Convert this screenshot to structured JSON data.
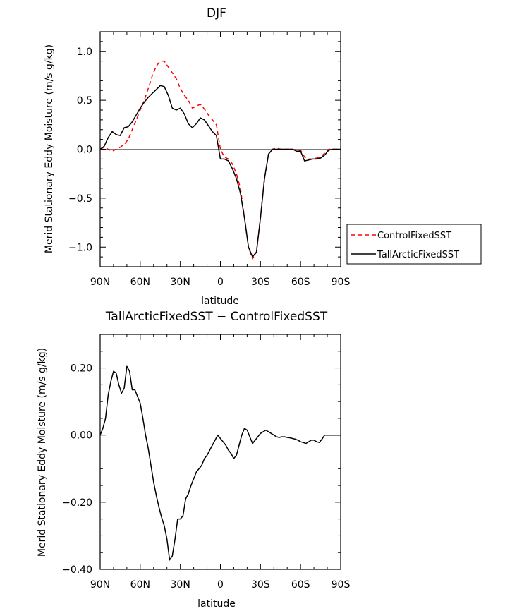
{
  "chart_data": [
    {
      "type": "line",
      "title": "DJF",
      "xlabel": "latitude",
      "ylabel": "Merid Stationary Eddy Moisture (m/s g/kg)",
      "xlim": [
        90,
        -90
      ],
      "ylim": [
        -1.2,
        1.2
      ],
      "x_ticks": [
        90,
        60,
        30,
        0,
        -30,
        -60,
        -90
      ],
      "x_tick_labels": [
        "90N",
        "60N",
        "30N",
        "0",
        "30S",
        "60S",
        "90S"
      ],
      "y_ticks": [
        1.0,
        0.5,
        0.0,
        -0.5,
        -1.0
      ],
      "y_tick_labels": [
        "1.0",
        "0.5",
        "0.0",
        "−0.5",
        "−1.0"
      ],
      "legend": "right",
      "series": [
        {
          "name": "ControlFixedSST",
          "color": "#ff0000",
          "dash": "dashed",
          "x": [
            90,
            87,
            84,
            81,
            78,
            75,
            72,
            69,
            66,
            63,
            60,
            57,
            54,
            51,
            48,
            45,
            42,
            39,
            36,
            33,
            30,
            27,
            24,
            21,
            18,
            15,
            12,
            9,
            6,
            3,
            0,
            -3,
            -6,
            -9,
            -12,
            -15,
            -18,
            -21,
            -24,
            -27,
            -30,
            -33,
            -36,
            -39,
            -42,
            -45,
            -48,
            -51,
            -54,
            -57,
            -60,
            -63,
            -66,
            -69,
            -72,
            -75,
            -78,
            -81,
            -84,
            -87,
            -90
          ],
          "y": [
            0.0,
            0.02,
            0.0,
            -0.02,
            0.0,
            0.02,
            0.05,
            0.1,
            0.2,
            0.3,
            0.4,
            0.5,
            0.62,
            0.75,
            0.85,
            0.9,
            0.9,
            0.84,
            0.78,
            0.72,
            0.62,
            0.55,
            0.5,
            0.42,
            0.44,
            0.46,
            0.41,
            0.35,
            0.3,
            0.25,
            0.0,
            -0.08,
            -0.1,
            -0.15,
            -0.25,
            -0.4,
            -0.7,
            -1.0,
            -1.12,
            -1.05,
            -0.7,
            -0.3,
            -0.05,
            0.0,
            0.01,
            0.0,
            0.0,
            0.0,
            0.0,
            -0.01,
            -0.01,
            -0.08,
            -0.1,
            -0.1,
            -0.09,
            -0.08,
            -0.04,
            0.0,
            0.0,
            0.0,
            0.0
          ]
        },
        {
          "name": "TallArcticFixedSST",
          "color": "#000000",
          "dash": "solid",
          "x": [
            90,
            87,
            84,
            81,
            78,
            75,
            72,
            69,
            66,
            63,
            60,
            57,
            54,
            51,
            48,
            45,
            42,
            39,
            36,
            33,
            30,
            27,
            24,
            21,
            18,
            15,
            12,
            9,
            6,
            3,
            0,
            -3,
            -6,
            -9,
            -12,
            -15,
            -18,
            -21,
            -24,
            -27,
            -30,
            -33,
            -36,
            -39,
            -42,
            -45,
            -48,
            -51,
            -54,
            -57,
            -60,
            -63,
            -66,
            -69,
            -72,
            -75,
            -78,
            -81,
            -84,
            -87,
            -90
          ],
          "y": [
            0.0,
            0.03,
            0.12,
            0.18,
            0.15,
            0.14,
            0.22,
            0.23,
            0.28,
            0.35,
            0.42,
            0.48,
            0.53,
            0.57,
            0.61,
            0.65,
            0.64,
            0.55,
            0.42,
            0.4,
            0.42,
            0.36,
            0.26,
            0.22,
            0.26,
            0.32,
            0.3,
            0.24,
            0.18,
            0.14,
            -0.1,
            -0.1,
            -0.12,
            -0.2,
            -0.3,
            -0.45,
            -0.7,
            -1.0,
            -1.1,
            -1.05,
            -0.7,
            -0.3,
            -0.05,
            0.0,
            0.0,
            0.0,
            0.0,
            0.0,
            0.0,
            -0.02,
            -0.02,
            -0.12,
            -0.11,
            -0.1,
            -0.1,
            -0.09,
            -0.06,
            -0.01,
            0.0,
            0.0,
            0.0
          ]
        }
      ]
    },
    {
      "type": "line",
      "title": "TallArcticFixedSST − ControlFixedSST",
      "xlabel": "latitude",
      "ylabel": "Merid Stationary Eddy Moisture (m/s g/kg)",
      "xlim": [
        90,
        -90
      ],
      "ylim": [
        -0.4,
        0.3
      ],
      "x_ticks": [
        90,
        60,
        30,
        0,
        -30,
        -60,
        -90
      ],
      "x_tick_labels": [
        "90N",
        "60N",
        "30N",
        "0",
        "30S",
        "60S",
        "90S"
      ],
      "y_ticks": [
        0.2,
        0.0,
        -0.2,
        -0.4
      ],
      "y_tick_labels": [
        "0.20",
        "0.00",
        "−0.20",
        "−0.40"
      ],
      "series": [
        {
          "name": "TallArcticFixedSST − ControlFixedSST",
          "color": "#000000",
          "dash": "solid",
          "x": [
            90,
            88,
            86,
            84,
            82,
            80,
            78,
            76,
            74,
            72,
            70,
            68,
            66,
            64,
            62,
            60,
            58,
            56,
            54,
            52,
            50,
            48,
            46,
            44,
            42,
            40,
            38,
            36,
            34,
            32,
            30,
            28,
            26,
            24,
            22,
            20,
            18,
            16,
            14,
            12,
            10,
            8,
            6,
            4,
            2,
            0,
            -2,
            -4,
            -6,
            -8,
            -10,
            -12,
            -14,
            -16,
            -18,
            -20,
            -22,
            -24,
            -26,
            -28,
            -30,
            -32,
            -34,
            -36,
            -38,
            -40,
            -42,
            -44,
            -46,
            -48,
            -50,
            -52,
            -54,
            -56,
            -58,
            -60,
            -62,
            -64,
            -66,
            -68,
            -70,
            -72,
            -74,
            -76,
            -78,
            -80,
            -82,
            -84,
            -86,
            -88,
            -90
          ],
          "y": [
            0.0,
            0.02,
            0.05,
            0.12,
            0.16,
            0.19,
            0.185,
            0.15,
            0.125,
            0.14,
            0.205,
            0.19,
            0.135,
            0.135,
            0.115,
            0.095,
            0.05,
            0.0,
            -0.04,
            -0.09,
            -0.14,
            -0.18,
            -0.215,
            -0.245,
            -0.27,
            -0.31,
            -0.372,
            -0.36,
            -0.31,
            -0.25,
            -0.25,
            -0.24,
            -0.19,
            -0.175,
            -0.15,
            -0.13,
            -0.11,
            -0.1,
            -0.09,
            -0.07,
            -0.06,
            -0.045,
            -0.03,
            -0.015,
            0.0,
            -0.01,
            -0.02,
            -0.03,
            -0.045,
            -0.055,
            -0.07,
            -0.06,
            -0.03,
            0.0,
            0.02,
            0.015,
            -0.005,
            -0.025,
            -0.015,
            -0.005,
            0.005,
            0.01,
            0.015,
            0.01,
            0.005,
            0.0,
            -0.005,
            -0.007,
            -0.005,
            -0.005,
            -0.007,
            -0.008,
            -0.01,
            -0.012,
            -0.015,
            -0.02,
            -0.022,
            -0.025,
            -0.02,
            -0.015,
            -0.015,
            -0.02,
            -0.022,
            -0.012,
            0.0,
            0.0,
            0.0,
            0.0,
            0.0,
            0.0,
            0.0
          ]
        }
      ]
    }
  ]
}
